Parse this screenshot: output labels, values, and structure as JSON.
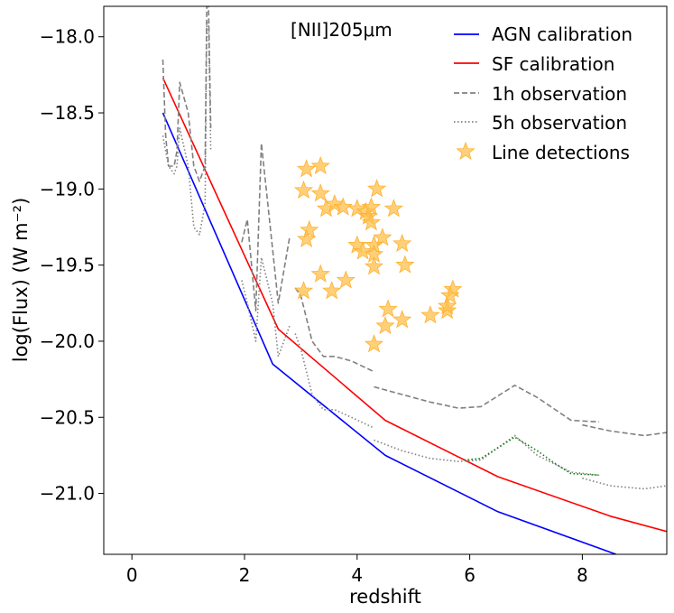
{
  "chart_data": {
    "type": "line",
    "title": "",
    "annotation": "[NII]205μm",
    "xlabel": "redshift",
    "ylabel": "log(Flux) (W m⁻²)",
    "xlim": [
      -0.5,
      9.5
    ],
    "ylim": [
      -21.4,
      -17.8
    ],
    "xticks": [
      0,
      2,
      4,
      6,
      8
    ],
    "xtick_labels": [
      "0",
      "2",
      "4",
      "6",
      "8"
    ],
    "yticks": [
      -18.0,
      -18.5,
      -19.0,
      -19.5,
      -20.0,
      -20.5,
      -21.0
    ],
    "ytick_labels": [
      "−18.0",
      "−18.5",
      "−19.0",
      "−19.5",
      "−20.0",
      "−20.5",
      "−21.0"
    ],
    "legend_position": "top-right",
    "series": [
      {
        "name": "AGN calibration",
        "style": "solid",
        "color": "#0000ff",
        "x": [
          0.55,
          2.5,
          4.5,
          6.5,
          8.6
        ],
        "y": [
          -18.5,
          -20.15,
          -20.75,
          -21.12,
          -21.4
        ]
      },
      {
        "name": "SF calibration",
        "style": "solid",
        "color": "#ff0000",
        "x": [
          0.55,
          2.6,
          4.5,
          6.5,
          8.5,
          9.5
        ],
        "y": [
          -18.27,
          -19.92,
          -20.52,
          -20.89,
          -21.15,
          -21.25
        ]
      },
      {
        "name": "1h observation",
        "style": "dashed",
        "color": "#808080",
        "segments": [
          {
            "x": [
              0.55,
              0.6,
              0.65,
              0.75,
              0.8,
              0.85,
              1.0,
              1.1,
              1.2,
              1.3,
              1.33,
              1.36,
              1.4
            ],
            "y": [
              -18.15,
              -18.65,
              -18.85,
              -18.85,
              -18.75,
              -18.3,
              -18.5,
              -18.85,
              -18.95,
              -18.85,
              -17.8,
              -17.8,
              -18.6
            ]
          },
          {
            "x": [
              1.95,
              2.05,
              2.2,
              2.3,
              2.5,
              2.6,
              2.8
            ],
            "y": [
              -19.35,
              -19.2,
              -19.8,
              -18.7,
              -19.4,
              -19.75,
              -19.32
            ]
          },
          {
            "x": [
              2.9,
              3.0,
              3.2,
              3.4,
              3.6,
              3.9,
              4.3
            ],
            "y": [
              -19.65,
              -19.7,
              -20.0,
              -20.1,
              -20.1,
              -20.13,
              -20.2
            ]
          },
          {
            "x": [
              4.3,
              4.8,
              5.3,
              5.8,
              6.2,
              6.8,
              7.2,
              7.8,
              8.3
            ],
            "y": [
              -20.3,
              -20.35,
              -20.4,
              -20.44,
              -20.43,
              -20.29,
              -20.37,
              -20.52,
              -20.53
            ]
          },
          {
            "x": [
              8.0,
              8.5,
              9.1,
              9.5
            ],
            "y": [
              -20.55,
              -20.59,
              -20.62,
              -20.6
            ]
          }
        ]
      },
      {
        "name": "5h observation",
        "style": "dotted",
        "color": "#808080",
        "segments": [
          {
            "x": [
              0.55,
              0.6,
              0.65,
              0.75,
              0.8,
              0.85,
              1.0,
              1.1,
              1.2,
              1.3,
              1.33,
              1.36,
              1.4
            ],
            "y": [
              -18.65,
              -18.75,
              -18.85,
              -18.9,
              -18.85,
              -18.6,
              -18.85,
              -19.25,
              -19.3,
              -19.1,
              -17.9,
              -17.9,
              -18.75
            ]
          },
          {
            "x": [
              1.95,
              2.05,
              2.2,
              2.3,
              2.5,
              2.6,
              2.8
            ],
            "y": [
              -19.6,
              -19.75,
              -20.0,
              -19.45,
              -19.75,
              -20.1,
              -19.9
            ]
          },
          {
            "x": [
              2.9,
              3.0,
              3.2,
              3.4,
              3.6,
              3.9,
              4.3
            ],
            "y": [
              -19.95,
              -20.05,
              -20.35,
              -20.45,
              -20.45,
              -20.5,
              -20.57
            ]
          },
          {
            "x": [
              4.3,
              4.8,
              5.3,
              5.8,
              6.2,
              6.8,
              7.2,
              7.8,
              8.3
            ],
            "y": [
              -20.65,
              -20.72,
              -20.77,
              -20.79,
              -20.78,
              -20.62,
              -20.75,
              -20.86,
              -20.88
            ]
          },
          {
            "x": [
              8.0,
              8.5,
              9.1,
              9.5
            ],
            "y": [
              -20.9,
              -20.95,
              -20.97,
              -20.95
            ]
          }
        ]
      },
      {
        "name": "",
        "style": "dotted",
        "color": "#008000",
        "in_legend": false,
        "x": [
          5.9,
          6.2,
          6.5,
          6.8,
          7.2,
          7.5,
          7.8,
          8.3
        ],
        "y": [
          -20.78,
          -20.77,
          -20.7,
          -20.63,
          -20.72,
          -20.8,
          -20.87,
          -20.88
        ]
      }
    ],
    "scatter": {
      "name": "Line detections",
      "marker": "star",
      "color": "#ffc04c",
      "points": [
        [
          3.1,
          -18.87
        ],
        [
          3.35,
          -18.85
        ],
        [
          3.05,
          -19.01
        ],
        [
          3.35,
          -19.03
        ],
        [
          3.45,
          -19.13
        ],
        [
          3.6,
          -19.1
        ],
        [
          3.75,
          -19.12
        ],
        [
          4.0,
          -19.13
        ],
        [
          4.15,
          -19.15
        ],
        [
          4.2,
          -19.18
        ],
        [
          4.25,
          -19.12
        ],
        [
          4.35,
          -19.0
        ],
        [
          4.25,
          -19.22
        ],
        [
          4.65,
          -19.13
        ],
        [
          3.15,
          -19.27
        ],
        [
          3.1,
          -19.33
        ],
        [
          4.0,
          -19.37
        ],
        [
          4.1,
          -19.41
        ],
        [
          4.3,
          -19.37
        ],
        [
          4.3,
          -19.43
        ],
        [
          4.45,
          -19.32
        ],
        [
          4.8,
          -19.36
        ],
        [
          4.3,
          -19.51
        ],
        [
          4.85,
          -19.5
        ],
        [
          3.35,
          -19.56
        ],
        [
          3.8,
          -19.6
        ],
        [
          3.55,
          -19.67
        ],
        [
          3.05,
          -19.67
        ],
        [
          4.55,
          -19.79
        ],
        [
          4.5,
          -19.9
        ],
        [
          4.8,
          -19.86
        ],
        [
          5.3,
          -19.83
        ],
        [
          5.6,
          -19.8
        ],
        [
          5.6,
          -19.77
        ],
        [
          5.7,
          -19.66
        ],
        [
          5.65,
          -19.7
        ],
        [
          4.3,
          -20.02
        ]
      ]
    }
  }
}
